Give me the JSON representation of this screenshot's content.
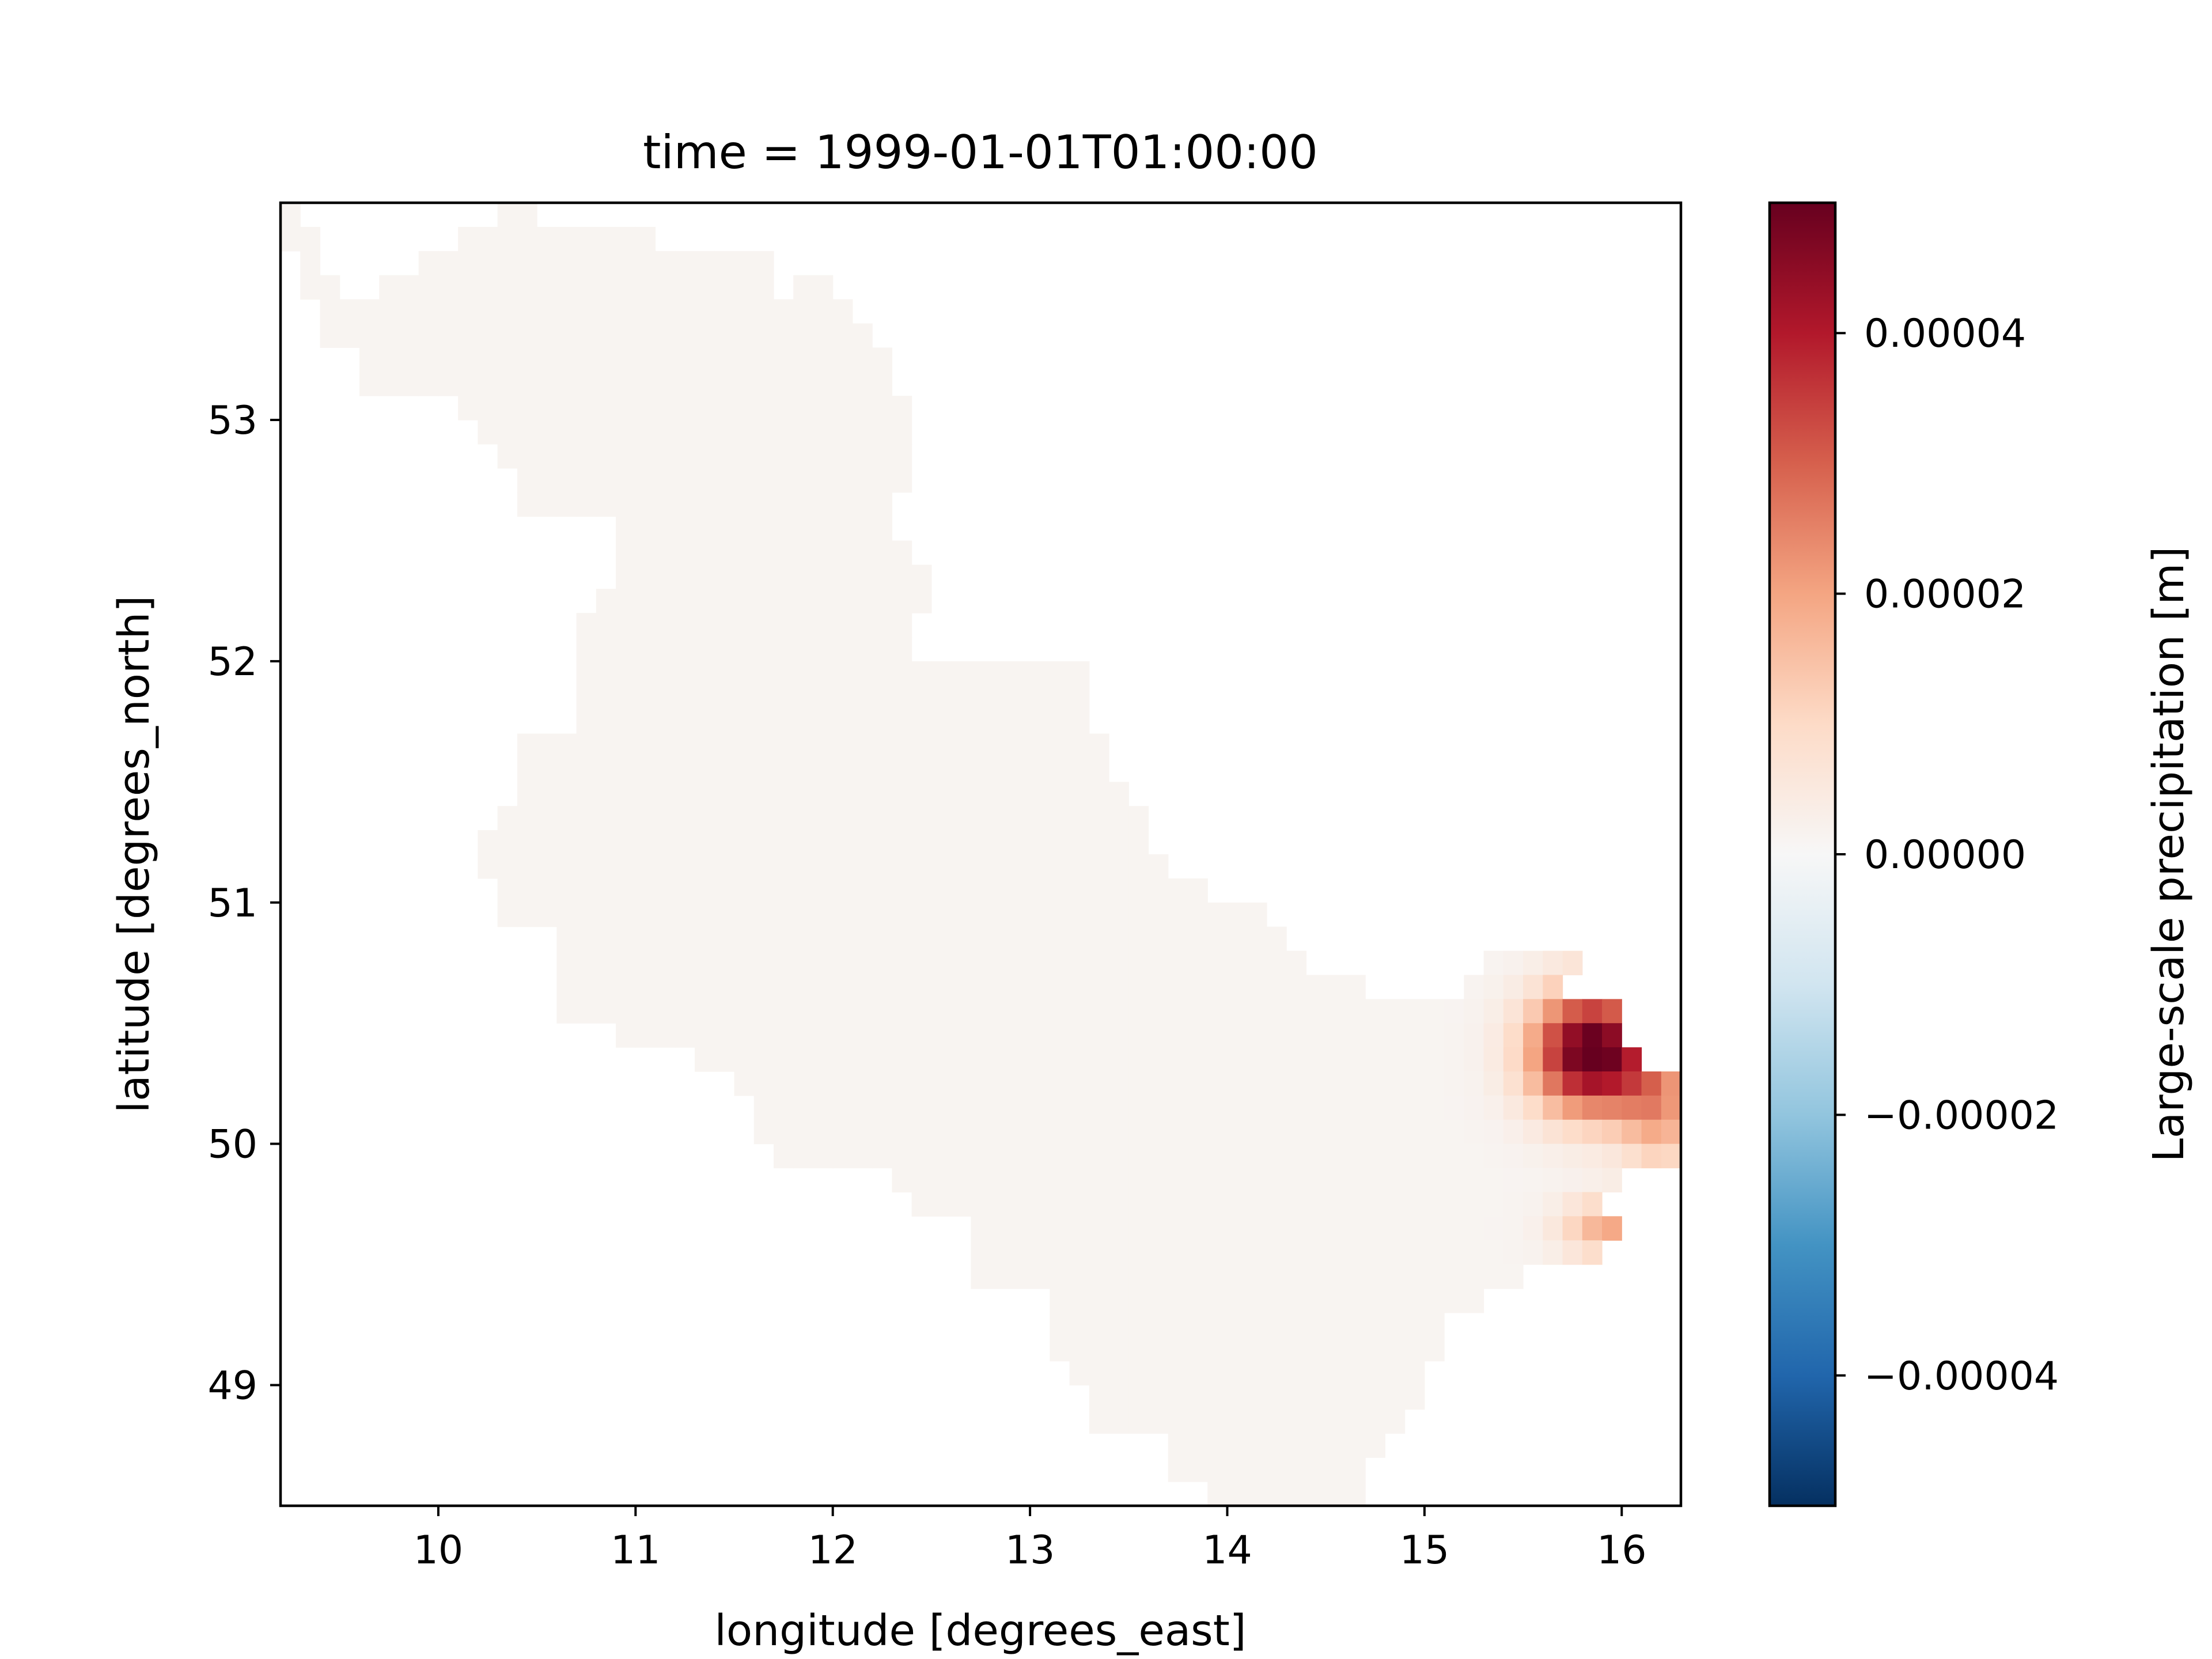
{
  "chart_data": {
    "type": "heatmap",
    "title": "time = 1999-01-01T01:00:00",
    "xlabel": "longitude [degrees_east]",
    "ylabel": "latitude [degrees_north]",
    "xlim": [
      9.2,
      16.3
    ],
    "ylim": [
      48.5,
      53.9
    ],
    "xticks": [
      {
        "value": 10,
        "label": "10"
      },
      {
        "value": 11,
        "label": "11"
      },
      {
        "value": 12,
        "label": "12"
      },
      {
        "value": 13,
        "label": "13"
      },
      {
        "value": 14,
        "label": "14"
      },
      {
        "value": 15,
        "label": "15"
      },
      {
        "value": 16,
        "label": "16"
      }
    ],
    "yticks": [
      {
        "value": 49,
        "label": "49"
      },
      {
        "value": 50,
        "label": "50"
      },
      {
        "value": 51,
        "label": "51"
      },
      {
        "value": 52,
        "label": "52"
      },
      {
        "value": 53,
        "label": "53"
      }
    ],
    "colorbar": {
      "label": "Large-scale precipitation [m]",
      "colormap": "RdBu_r",
      "range": [
        -5e-05,
        5e-05
      ],
      "ticks": [
        {
          "value": 4e-05,
          "label": "0.00004"
        },
        {
          "value": 2e-05,
          "label": "0.00002"
        },
        {
          "value": 0.0,
          "label": "0.00000"
        },
        {
          "value": -2e-05,
          "label": "−0.00002"
        },
        {
          "value": -4e-05,
          "label": "−0.00004"
        }
      ]
    },
    "grid": false,
    "cell_size_deg": 0.1,
    "region_rows": [
      {
        "lat": 53.85,
        "spans": [
          [
            9.2,
            9.3
          ],
          [
            10.3,
            10.5
          ]
        ]
      },
      {
        "lat": 53.75,
        "spans": [
          [
            9.2,
            9.4
          ],
          [
            10.1,
            11.1
          ]
        ]
      },
      {
        "lat": 53.65,
        "spans": [
          [
            9.3,
            9.4
          ],
          [
            9.9,
            11.7
          ]
        ]
      },
      {
        "lat": 53.55,
        "spans": [
          [
            9.3,
            9.5
          ],
          [
            9.7,
            11.7
          ],
          [
            11.8,
            12.0
          ]
        ]
      },
      {
        "lat": 53.45,
        "spans": [
          [
            9.4,
            12.1
          ]
        ]
      },
      {
        "lat": 53.35,
        "spans": [
          [
            9.4,
            12.2
          ]
        ]
      },
      {
        "lat": 53.25,
        "spans": [
          [
            9.6,
            12.3
          ]
        ]
      },
      {
        "lat": 53.15,
        "spans": [
          [
            9.6,
            12.3
          ]
        ]
      },
      {
        "lat": 53.05,
        "spans": [
          [
            10.1,
            12.4
          ]
        ]
      },
      {
        "lat": 52.95,
        "spans": [
          [
            10.2,
            12.4
          ]
        ]
      },
      {
        "lat": 52.85,
        "spans": [
          [
            10.3,
            12.4
          ]
        ]
      },
      {
        "lat": 52.75,
        "spans": [
          [
            10.4,
            12.4
          ]
        ]
      },
      {
        "lat": 52.65,
        "spans": [
          [
            10.4,
            12.3
          ]
        ]
      },
      {
        "lat": 52.55,
        "spans": [
          [
            10.9,
            12.3
          ]
        ]
      },
      {
        "lat": 52.45,
        "spans": [
          [
            10.9,
            12.4
          ]
        ]
      },
      {
        "lat": 52.35,
        "spans": [
          [
            10.9,
            12.5
          ]
        ]
      },
      {
        "lat": 52.25,
        "spans": [
          [
            10.8,
            12.5
          ]
        ]
      },
      {
        "lat": 52.15,
        "spans": [
          [
            10.7,
            12.4
          ]
        ]
      },
      {
        "lat": 52.05,
        "spans": [
          [
            10.7,
            12.4
          ]
        ]
      },
      {
        "lat": 51.95,
        "spans": [
          [
            10.7,
            13.3
          ]
        ]
      },
      {
        "lat": 51.85,
        "spans": [
          [
            10.7,
            13.3
          ]
        ]
      },
      {
        "lat": 51.75,
        "spans": [
          [
            10.7,
            13.3
          ]
        ]
      },
      {
        "lat": 51.65,
        "spans": [
          [
            10.4,
            13.4
          ]
        ]
      },
      {
        "lat": 51.55,
        "spans": [
          [
            10.4,
            13.4
          ]
        ]
      },
      {
        "lat": 51.45,
        "spans": [
          [
            10.4,
            13.5
          ]
        ]
      },
      {
        "lat": 51.35,
        "spans": [
          [
            10.3,
            13.6
          ]
        ]
      },
      {
        "lat": 51.25,
        "spans": [
          [
            10.2,
            13.6
          ]
        ]
      },
      {
        "lat": 51.15,
        "spans": [
          [
            10.2,
            13.7
          ]
        ]
      },
      {
        "lat": 51.05,
        "spans": [
          [
            10.3,
            13.9
          ]
        ]
      },
      {
        "lat": 50.95,
        "spans": [
          [
            10.3,
            14.2
          ]
        ]
      },
      {
        "lat": 50.85,
        "spans": [
          [
            10.6,
            14.3
          ]
        ]
      },
      {
        "lat": 50.75,
        "spans": [
          [
            10.6,
            14.4
          ],
          [
            15.3,
            15.8
          ]
        ]
      },
      {
        "lat": 50.65,
        "spans": [
          [
            10.6,
            14.7
          ],
          [
            15.2,
            15.7
          ]
        ]
      },
      {
        "lat": 50.55,
        "spans": [
          [
            10.6,
            16.0
          ]
        ]
      },
      {
        "lat": 50.45,
        "spans": [
          [
            10.9,
            16.0
          ]
        ]
      },
      {
        "lat": 50.35,
        "spans": [
          [
            11.3,
            16.1
          ]
        ]
      },
      {
        "lat": 50.25,
        "spans": [
          [
            11.5,
            16.3
          ]
        ]
      },
      {
        "lat": 50.15,
        "spans": [
          [
            11.6,
            16.3
          ]
        ]
      },
      {
        "lat": 50.05,
        "spans": [
          [
            11.6,
            16.3
          ]
        ]
      },
      {
        "lat": 49.95,
        "spans": [
          [
            11.7,
            16.3
          ]
        ]
      },
      {
        "lat": 49.85,
        "spans": [
          [
            12.3,
            16.0
          ]
        ]
      },
      {
        "lat": 49.75,
        "spans": [
          [
            12.4,
            15.9
          ]
        ]
      },
      {
        "lat": 49.65,
        "spans": [
          [
            12.7,
            16.0
          ]
        ]
      },
      {
        "lat": 49.55,
        "spans": [
          [
            12.7,
            15.9
          ]
        ]
      },
      {
        "lat": 49.45,
        "spans": [
          [
            12.7,
            15.5
          ]
        ]
      },
      {
        "lat": 49.35,
        "spans": [
          [
            13.1,
            15.3
          ]
        ]
      },
      {
        "lat": 49.25,
        "spans": [
          [
            13.1,
            15.1
          ]
        ]
      },
      {
        "lat": 49.15,
        "spans": [
          [
            13.1,
            15.1
          ]
        ]
      },
      {
        "lat": 49.05,
        "spans": [
          [
            13.2,
            15.0
          ]
        ]
      },
      {
        "lat": 48.95,
        "spans": [
          [
            13.3,
            15.0
          ]
        ]
      },
      {
        "lat": 48.85,
        "spans": [
          [
            13.3,
            14.9
          ]
        ]
      },
      {
        "lat": 48.75,
        "spans": [
          [
            13.7,
            14.8
          ]
        ]
      },
      {
        "lat": 48.65,
        "spans": [
          [
            13.7,
            14.7
          ]
        ]
      },
      {
        "lat": 48.55,
        "spans": [
          [
            13.9,
            14.7
          ]
        ]
      }
    ],
    "hotspots": [
      {
        "lon": 15.85,
        "lat": 50.38,
        "amplitude": 5.2e-05,
        "radius_lon": 0.3,
        "radius_lat": 0.25
      },
      {
        "lon": 15.95,
        "lat": 49.65,
        "amplitude": 1.8e-05,
        "radius_lon": 0.25,
        "radius_lat": 0.12
      },
      {
        "lon": 16.2,
        "lat": 50.15,
        "amplitude": 1.8e-05,
        "radius_lon": 0.2,
        "radius_lat": 0.25
      }
    ],
    "background_value": 1.2e-06
  }
}
